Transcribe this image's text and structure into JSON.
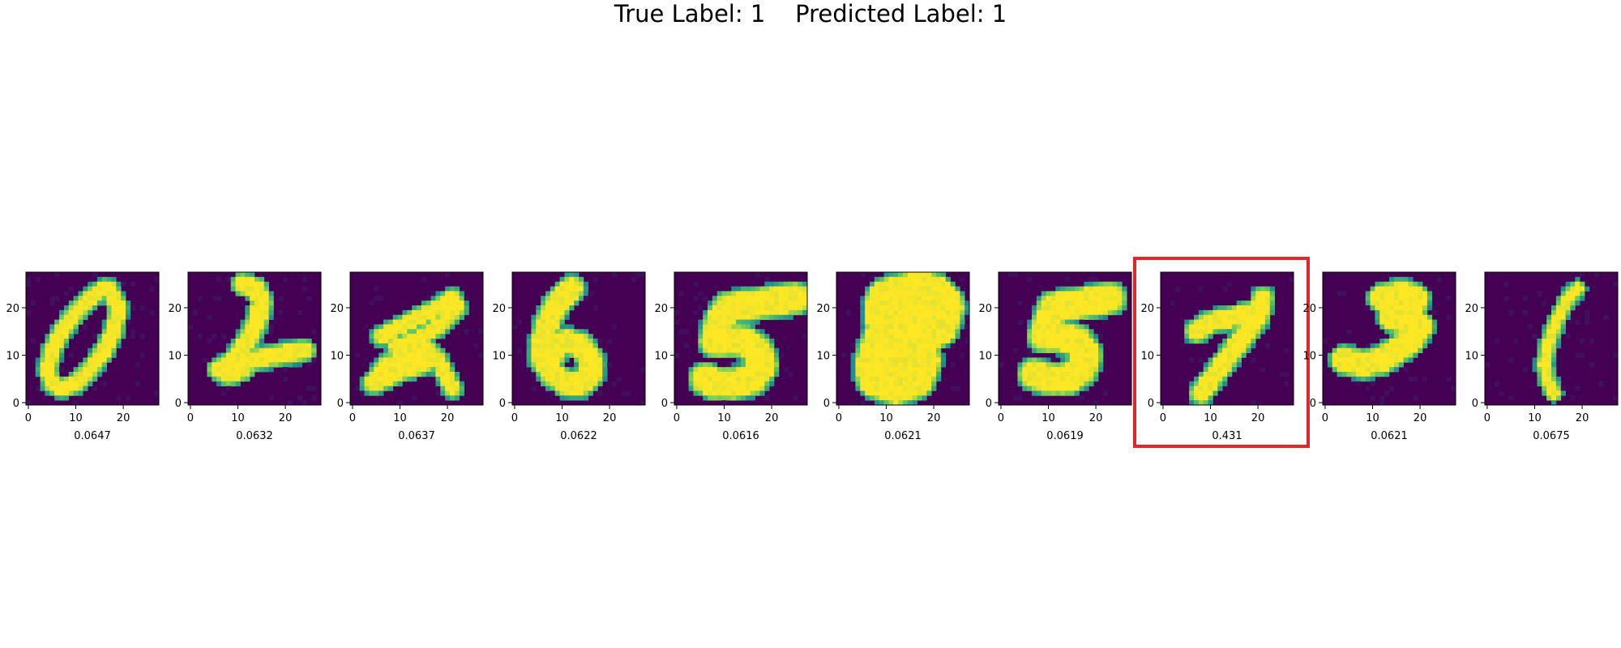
{
  "figure": {
    "title": "True Label: 1    Predicted Label: 1"
  },
  "colors": {
    "background": "#440154",
    "highlight": "#e3262a",
    "colormap": [
      "#440154",
      "#3b528b",
      "#21918c",
      "#5ec962",
      "#fde725"
    ]
  },
  "axes": {
    "xticks": [
      "0",
      "10",
      "20"
    ],
    "yticks": [
      "0",
      "10",
      "20"
    ],
    "xlim": [
      -0.5,
      27.5
    ],
    "ylim": [
      27.5,
      -0.5
    ]
  },
  "chart_data": {
    "type": "heatmap",
    "image_size": [
      28,
      28
    ],
    "highlighted_index": 7,
    "panels": [
      {
        "digit": "0",
        "score": "0.0647"
      },
      {
        "digit": "2",
        "score": "0.0632"
      },
      {
        "digit": "2",
        "score": "0.0637"
      },
      {
        "digit": "6",
        "score": "0.0622"
      },
      {
        "digit": "5",
        "score": "0.0616"
      },
      {
        "digit": "8",
        "score": "0.0621"
      },
      {
        "digit": "5",
        "score": "0.0619"
      },
      {
        "digit": "7",
        "score": "0.431"
      },
      {
        "digit": "3",
        "score": "0.0621"
      },
      {
        "digit": "1",
        "score": "0.0675"
      }
    ]
  }
}
